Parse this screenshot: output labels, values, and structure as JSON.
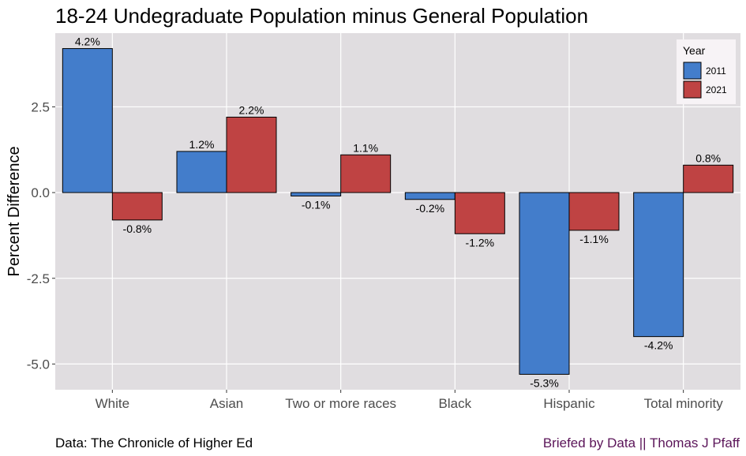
{
  "chart_data": {
    "type": "bar",
    "title": "18-24 Undegraduate Population minus General Population",
    "ylabel": "Percent Difference",
    "xlabel": "",
    "categories": [
      "White",
      "Asian",
      "Two or more races",
      "Black",
      "Hispanic",
      "Total minority"
    ],
    "series": [
      {
        "name": "2011",
        "color": "#437DCB",
        "values": [
          4.2,
          1.2,
          -0.1,
          -0.2,
          -5.3,
          -4.2
        ],
        "labels": [
          "4.2%",
          "1.2%",
          "-0.1%",
          "-0.2%",
          "-5.3%",
          "-4.2%"
        ]
      },
      {
        "name": "2021",
        "color": "#BF4343",
        "values": [
          -0.8,
          2.2,
          1.1,
          -1.2,
          -1.1,
          0.8
        ],
        "labels": [
          "-0.8%",
          "2.2%",
          "1.1%",
          "-1.2%",
          "-1.1%",
          "0.8%"
        ]
      }
    ],
    "ylim": [
      -5.75,
      4.65
    ],
    "yticks": [
      2.5,
      0.0,
      -2.5,
      -5.0
    ],
    "ytick_labels": [
      "2.5",
      "0.0",
      "-2.5",
      "-5.0"
    ],
    "grid": true,
    "legend": {
      "title": "Year",
      "position": "top-right"
    },
    "panel_color": "#E0DDE0"
  },
  "captions": {
    "source": "Data: The Chronicle of Higher Ed",
    "credit": "Briefed by Data || Thomas J Pfaff",
    "credit_color": "#5B1559"
  }
}
